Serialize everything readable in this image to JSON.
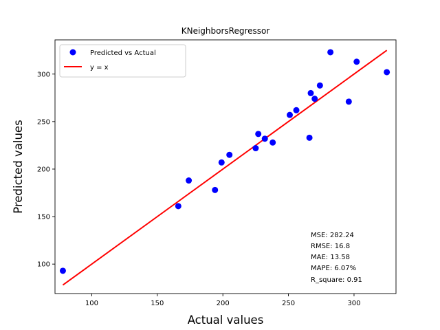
{
  "chart_data": {
    "type": "scatter",
    "title": "KNeighborsRegressor",
    "xlabel": "Actual values",
    "ylabel": "Predicted values",
    "xlim": [
      72,
      332
    ],
    "ylim": [
      69,
      336
    ],
    "xticks": [
      100,
      150,
      200,
      250,
      300
    ],
    "yticks": [
      100,
      150,
      200,
      250,
      300
    ],
    "legend_position": "upper-left",
    "series": [
      {
        "name": "Predicted vs Actual",
        "kind": "scatter",
        "color": "#0000ff",
        "points": [
          {
            "x": 78,
            "y": 93
          },
          {
            "x": 166,
            "y": 161
          },
          {
            "x": 174,
            "y": 188
          },
          {
            "x": 194,
            "y": 178
          },
          {
            "x": 199,
            "y": 207
          },
          {
            "x": 205,
            "y": 215
          },
          {
            "x": 225,
            "y": 222
          },
          {
            "x": 227,
            "y": 237
          },
          {
            "x": 232,
            "y": 232
          },
          {
            "x": 238,
            "y": 228
          },
          {
            "x": 251,
            "y": 257
          },
          {
            "x": 256,
            "y": 262
          },
          {
            "x": 266,
            "y": 233
          },
          {
            "x": 267,
            "y": 280
          },
          {
            "x": 270,
            "y": 274
          },
          {
            "x": 274,
            "y": 288
          },
          {
            "x": 282,
            "y": 323
          },
          {
            "x": 296,
            "y": 271
          },
          {
            "x": 302,
            "y": 313
          },
          {
            "x": 325,
            "y": 302
          }
        ]
      },
      {
        "name": "y = x",
        "kind": "line",
        "color": "#ff0000",
        "points": [
          {
            "x": 78,
            "y": 78
          },
          {
            "x": 325,
            "y": 325
          }
        ]
      }
    ],
    "annotations": [
      "MSE: 282.24",
      "RMSE: 16.8",
      "MAE: 13.58",
      "MAPE: 6.07%",
      "R_square: 0.91"
    ]
  }
}
